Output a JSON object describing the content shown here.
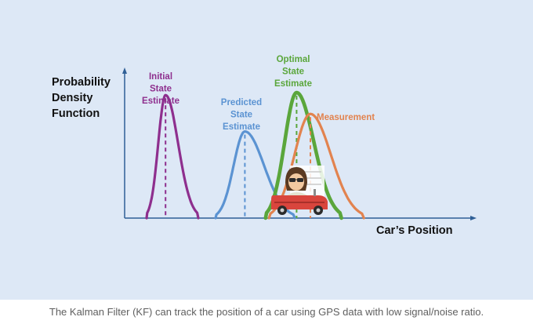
{
  "chart_data": {
    "type": "line",
    "ylabel_lines": [
      "Probability",
      "Density",
      "Function"
    ],
    "xlabel": "Car’s Position",
    "xlim": [
      0,
      100
    ],
    "ylim": [
      0,
      1
    ],
    "grid": false,
    "series": [
      {
        "name": "Initial State Estimate",
        "label_lines": [
          "Initial",
          "State",
          "Estimate"
        ],
        "color": "#8e2f8e",
        "mean": 10.5,
        "peak": 0.98,
        "spread_left": 5.5,
        "spread_right": 9.5
      },
      {
        "name": "Predicted State Estimate",
        "label_lines": [
          "Predicted",
          "State",
          "Estimate"
        ],
        "color": "#5b93d2",
        "mean": 33.5,
        "peak": 0.69,
        "spread_left": 8.5,
        "spread_right": 14.5
      },
      {
        "name": "Optimal State Estimate",
        "label_lines": [
          "Optimal",
          "State",
          "Estimate"
        ],
        "color": "#5aa63b",
        "mean": 48.5,
        "peak": 1.0,
        "spread_left": 9.0,
        "spread_right": 13.0
      },
      {
        "name": "Measurement",
        "label_lines": [
          "Measurement"
        ],
        "color": "#e2834f",
        "mean": 52.5,
        "peak": 0.83,
        "spread_left": 12.0,
        "spread_right": 15.5
      }
    ]
  },
  "caption": "The Kalman Filter (KF) can track the position of a car using GPS data with low signal/noise ratio.",
  "illustration": {
    "name": "car-with-driver",
    "colors": {
      "car": "#d9453d",
      "driver_hair": "#5a3a22",
      "driver_shirt": "#e3e3d0",
      "glasses": "#2b2b2b"
    }
  },
  "colors": {
    "background": "#dde8f6",
    "axis": "#2f5f96",
    "text": "#111111"
  }
}
